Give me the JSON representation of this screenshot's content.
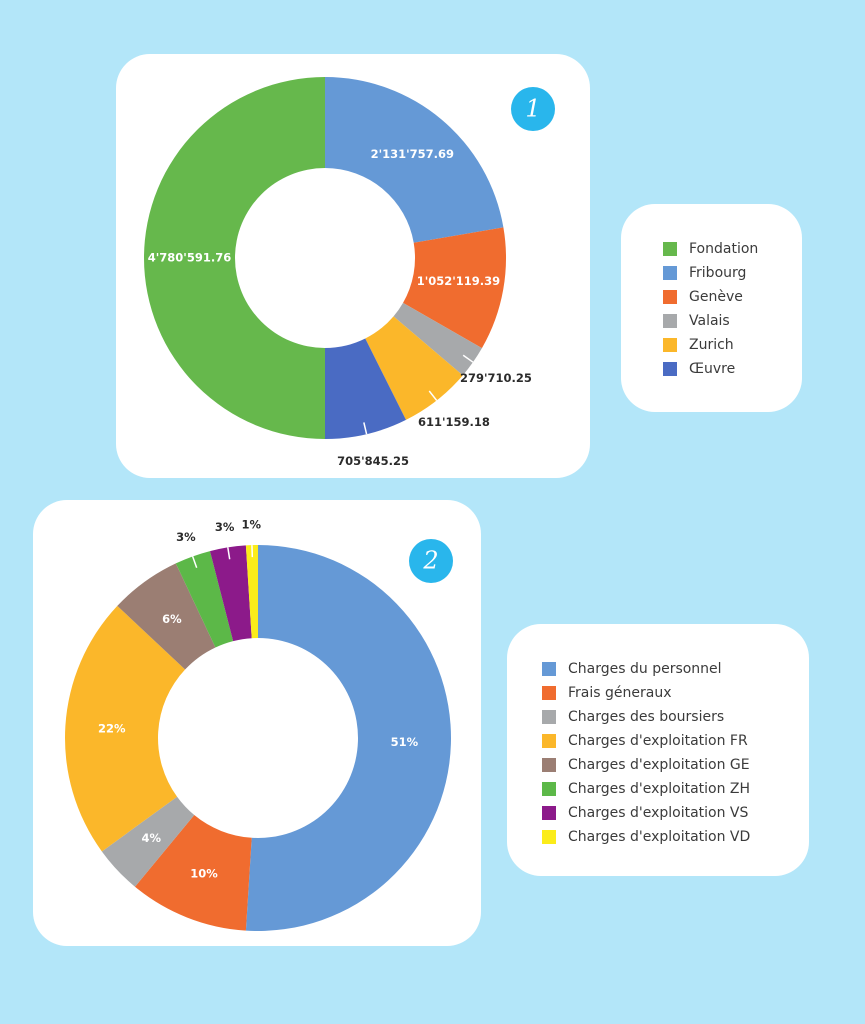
{
  "chart_data": [
    {
      "type": "pie",
      "badge": "1",
      "categories": [
        "Fondation",
        "Fribourg",
        "Genève",
        "Valais",
        "Zurich",
        "Œuvre"
      ],
      "values": [
        4780591.76,
        2131757.69,
        1052119.39,
        279710.25,
        611159.18,
        705845.25
      ],
      "labels": [
        "4'780'591.76",
        "2'131'757.69",
        "1'052'119.39",
        "279'710.25",
        "611'159.18",
        "705'845.25"
      ],
      "colors": [
        "#66b84c",
        "#6599d6",
        "#f06c2f",
        "#a7a9ab",
        "#fbb72a",
        "#4a6bc3"
      ],
      "ring_order": [
        "Fribourg",
        "Genève",
        "Valais",
        "Zurich",
        "Œuvre",
        "Fondation"
      ]
    },
    {
      "type": "pie",
      "badge": "2",
      "categories": [
        "Charges du personnel",
        "Frais géneraux",
        "Charges des boursiers",
        "Charges d'exploitation FR",
        "Charges d'exploitation GE",
        "Charges d'exploitation ZH",
        "Charges d'exploitation VS",
        "Charges d'exploitation VD"
      ],
      "values": [
        51,
        10,
        4,
        22,
        6,
        3,
        3,
        1
      ],
      "labels": [
        "51%",
        "10%",
        "4%",
        "22%",
        "6%",
        "3%",
        "3%",
        "1%"
      ],
      "colors": [
        "#6599d6",
        "#f06c2f",
        "#a7a9ab",
        "#fbb72a",
        "#9b7e73",
        "#5cb848",
        "#8c1a8a",
        "#fbec1a"
      ]
    }
  ]
}
